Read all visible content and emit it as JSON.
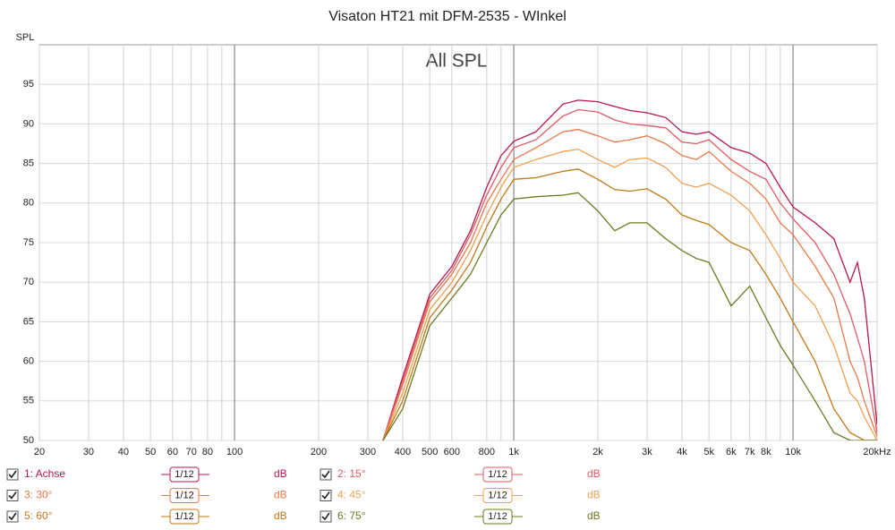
{
  "chart_data": {
    "type": "line",
    "title": "Visaton HT21 mit DFM-2535 - WInkel",
    "ylabel": "SPL",
    "annotation": "All SPL",
    "x": [
      340,
      400,
      500,
      600,
      700,
      800,
      900,
      1000,
      1200,
      1500,
      1700,
      2000,
      2300,
      2600,
      3000,
      3500,
      4000,
      4500,
      5000,
      6000,
      7000,
      8000,
      9000,
      10000,
      12000,
      14000,
      16000,
      17000,
      18000,
      20000
    ],
    "series": [
      {
        "name": "1: Achse",
        "color": "#b8174a",
        "values": [
          50,
          58,
          68.5,
          72,
          76.5,
          82,
          86,
          87.8,
          89,
          92.5,
          93,
          92.8,
          92.2,
          91.7,
          91.4,
          90.8,
          89,
          88.7,
          89,
          87,
          86.3,
          85,
          82,
          79.5,
          77.5,
          75.5,
          70,
          72.5,
          68,
          52
        ]
      },
      {
        "name": "2: 15°",
        "color": "#e05a62",
        "values": [
          50,
          57.5,
          68,
          71.5,
          76,
          81,
          84.5,
          87,
          88,
          91,
          91.8,
          91.5,
          90.5,
          90,
          89.8,
          89.5,
          87.7,
          87.5,
          88,
          85.5,
          84,
          83,
          80,
          78,
          75,
          71,
          66,
          63,
          60,
          51
        ]
      },
      {
        "name": "3: 30°",
        "color": "#e8784a",
        "values": [
          50,
          57,
          67.5,
          71,
          75,
          80,
          83,
          85.5,
          87,
          89,
          89.3,
          88.5,
          87.7,
          88,
          88.5,
          87.5,
          86,
          85.5,
          86.5,
          84,
          82.5,
          80.5,
          77.5,
          76,
          72,
          68,
          60,
          58,
          55,
          50.5
        ]
      },
      {
        "name": "4: 45°",
        "color": "#f0a050",
        "values": [
          50,
          56,
          66.5,
          70,
          74,
          78.5,
          82,
          84.5,
          85.5,
          86.5,
          86.8,
          85.5,
          84.5,
          85.5,
          85.7,
          84.5,
          82.5,
          82,
          82.5,
          81,
          79,
          76,
          73,
          70,
          67,
          62,
          56,
          55,
          53,
          50
        ]
      },
      {
        "name": "5: 60°",
        "color": "#c07818",
        "values": [
          50,
          55,
          65.5,
          69,
          72.5,
          77,
          80.5,
          83,
          83.2,
          84,
          84.3,
          83,
          81.7,
          81.5,
          81.8,
          80.5,
          78.5,
          77.8,
          77.3,
          75,
          74,
          71,
          68,
          65,
          60,
          54,
          51,
          50.5,
          50,
          50
        ]
      },
      {
        "name": "6: 75°",
        "color": "#6a7a20",
        "values": [
          50,
          54,
          64.5,
          68,
          71,
          75,
          78.5,
          80.5,
          80.8,
          81,
          81.3,
          79,
          76.5,
          77.5,
          77.5,
          75.5,
          74,
          73,
          72.5,
          67,
          69.5,
          65.5,
          62,
          59.5,
          55,
          51,
          50,
          50,
          50,
          50
        ]
      }
    ],
    "smoothing": "1/12",
    "unit": "dB",
    "log_x": true,
    "grid": true,
    "xlim": [
      20,
      20000
    ],
    "ylim": [
      50,
      100
    ],
    "xticks": [
      20,
      30,
      40,
      50,
      60,
      70,
      80,
      {
        "value": 100,
        "label": "100"
      },
      200,
      300,
      400,
      500,
      600,
      800,
      {
        "value": 1000,
        "label": "1k"
      },
      {
        "value": 2000,
        "label": "2k"
      },
      {
        "value": 3000,
        "label": "3k"
      },
      {
        "value": 4000,
        "label": "4k"
      },
      {
        "value": 5000,
        "label": "5k"
      },
      {
        "value": 6000,
        "label": "6k"
      },
      {
        "value": 7000,
        "label": "7k"
      },
      {
        "value": 8000,
        "label": "8k"
      },
      {
        "value": 10000,
        "label": "10k"
      },
      {
        "value": 20000,
        "label": "20kHz"
      }
    ],
    "major_xgrid": [
      100,
      1000,
      10000
    ],
    "minor_xgrid": [
      90,
      900,
      9000
    ],
    "yticks": [
      50,
      55,
      60,
      65,
      70,
      75,
      80,
      85,
      90,
      95
    ]
  }
}
